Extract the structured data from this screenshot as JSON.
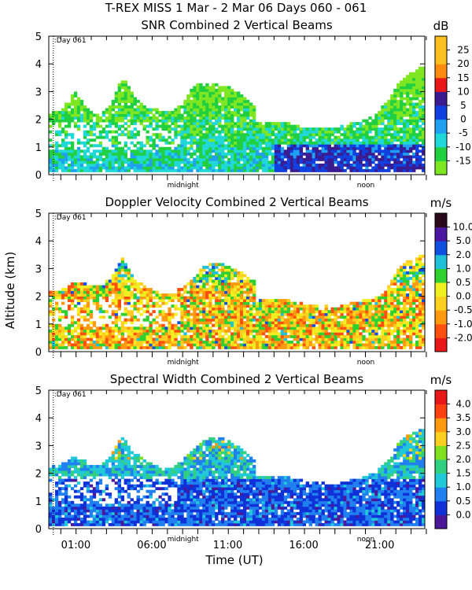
{
  "figure": {
    "suptitle": "T-REX MISS    1 Mar -  2 Mar 06 Days 060 - 061",
    "ylabel": "Altitude (km)",
    "xlabel": "Time (UT)",
    "x_ticks": [
      "01:00",
      "06:00",
      "11:00",
      "16:00",
      "21:00"
    ],
    "inner_labels": [
      "midnight",
      "noon"
    ],
    "day_marker": ":Day 061"
  },
  "chart_data": [
    {
      "type": "heatmap",
      "title": "SNR Combined 2 Vertical Beams",
      "unit": "dB",
      "ylim": [
        0,
        5
      ],
      "y_ticks": [
        "0",
        "1",
        "2",
        "3",
        "4",
        "5"
      ],
      "colorbar_ticks": [
        "-15",
        "-10",
        "-5",
        "0",
        "5",
        "10",
        "15",
        "20",
        "25"
      ],
      "colorbar_colors": [
        "#7fe622",
        "#20d040",
        "#20d8d8",
        "#20a0f0",
        "#1040e0",
        "#3a1c90",
        "#e81818",
        "#ff8a10",
        "#ffc020",
        "#ffc020"
      ],
      "coverage_top_km": [
        2.2,
        2.3,
        3.0,
        2.4,
        2.1,
        2.5,
        3.5,
        2.8,
        2.4,
        2.3,
        2.2,
        2.5,
        3.2,
        3.3,
        3.2,
        3.1,
        2.8,
        2.4,
        2.1,
        1.9,
        1.8,
        1.7,
        1.7,
        1.6,
        1.7,
        1.8,
        1.9,
        2.1,
        2.6,
        3.3,
        3.7,
        3.9
      ]
    },
    {
      "type": "heatmap",
      "title": "Doppler Velocity Combined 2 Vertical Beams",
      "unit": "m/s",
      "ylim": [
        0,
        5
      ],
      "y_ticks": [
        "0",
        "1",
        "2",
        "3",
        "4",
        "5"
      ],
      "colorbar_ticks": [
        "-2.0",
        "-1.0",
        "-0.5",
        "0.0",
        "0.5",
        "1.0",
        "2.0",
        "5.0",
        "10.0"
      ],
      "colorbar_colors": [
        "#e81818",
        "#ff5010",
        "#ff9a10",
        "#ffd020",
        "#f0f020",
        "#30d030",
        "#20c0d8",
        "#1050e0",
        "#4a18a0",
        "#2a0a1a"
      ],
      "coverage_top_km": [
        2.2,
        2.2,
        2.5,
        2.4,
        2.3,
        2.6,
        3.4,
        2.6,
        2.3,
        2.1,
        2.0,
        2.3,
        2.7,
        3.1,
        3.2,
        3.0,
        2.8,
        2.5,
        2.1,
        1.9,
        1.8,
        1.7,
        1.7,
        1.6,
        1.6,
        1.7,
        1.8,
        1.9,
        2.2,
        3.0,
        3.3,
        3.5
      ]
    },
    {
      "type": "heatmap",
      "title": "Spectral Width Combined 2 Vertical Beams",
      "unit": "m/s",
      "ylim": [
        0,
        5
      ],
      "y_ticks": [
        "0",
        "1",
        "2",
        "3",
        "4",
        "5"
      ],
      "colorbar_ticks": [
        "0.0",
        "0.5",
        "1.0",
        "1.5",
        "2.0",
        "2.5",
        "3.0",
        "3.5",
        "4.0"
      ],
      "colorbar_colors": [
        "#4a1898",
        "#1030d8",
        "#2080f0",
        "#20c8d8",
        "#30d080",
        "#7fe020",
        "#ffd020",
        "#ff9a10",
        "#ff4010",
        "#e81818"
      ],
      "coverage_top_km": [
        2.2,
        2.3,
        2.6,
        2.4,
        2.2,
        2.6,
        3.3,
        2.7,
        2.4,
        2.2,
        2.1,
        2.4,
        2.9,
        3.2,
        3.3,
        3.1,
        2.8,
        2.4,
        2.1,
        1.9,
        1.8,
        1.7,
        1.7,
        1.6,
        1.6,
        1.7,
        1.8,
        2.0,
        2.4,
        3.1,
        3.4,
        3.6
      ]
    }
  ]
}
